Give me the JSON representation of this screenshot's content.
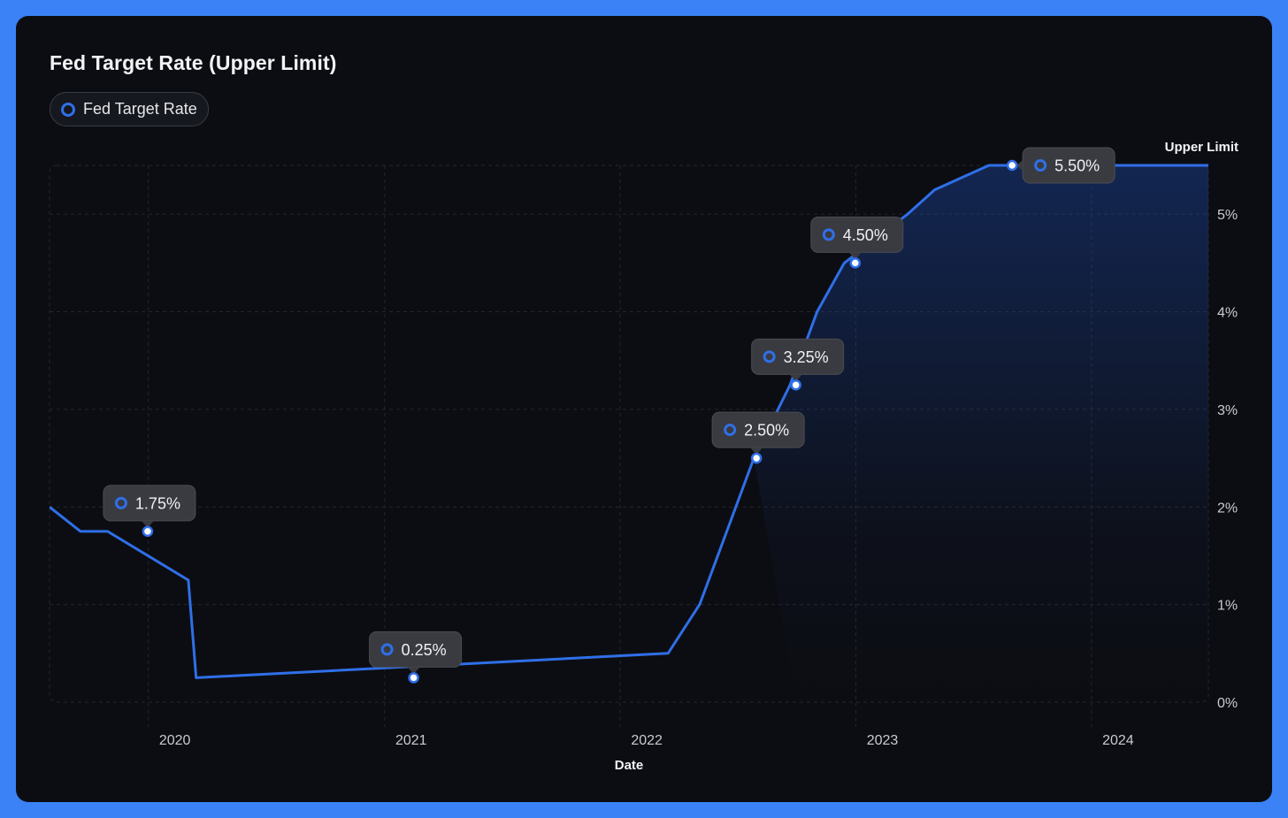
{
  "chart_data": {
    "type": "area",
    "title": "Fed Target Rate (Upper Limit)",
    "legend": {
      "label": "Fed Target Rate",
      "placement": "top-left"
    },
    "xlabel": "Date",
    "ylabel": "Upper Limit",
    "x_ticks": [
      "2020",
      "2021",
      "2022",
      "2023",
      "2024"
    ],
    "y_ticks": [
      "0%",
      "1%",
      "2%",
      "3%",
      "4%",
      "5%"
    ],
    "ylim": [
      0,
      5.5
    ],
    "xlim": [
      "2019-08-01",
      "2024-06-30"
    ],
    "grid": true,
    "colors": {
      "line": "#2f6fe8",
      "background": "#0c0d12",
      "frame": "#3b82f6"
    },
    "series": [
      {
        "name": "Fed Target Rate",
        "points": [
          [
            "2019-08-01",
            2.0
          ],
          [
            "2019-09-18",
            1.75
          ],
          [
            "2019-10-30",
            1.75
          ],
          [
            "2020-03-03",
            1.25
          ],
          [
            "2020-03-15",
            0.25
          ],
          [
            "2022-03-16",
            0.5
          ],
          [
            "2022-05-04",
            1.0
          ],
          [
            "2022-06-15",
            1.75
          ],
          [
            "2022-07-27",
            2.5
          ],
          [
            "2022-09-21",
            3.25
          ],
          [
            "2022-11-02",
            4.0
          ],
          [
            "2022-12-14",
            4.5
          ],
          [
            "2023-02-01",
            4.75
          ],
          [
            "2023-03-22",
            5.0
          ],
          [
            "2023-05-03",
            5.25
          ],
          [
            "2023-07-26",
            5.5
          ],
          [
            "2024-06-30",
            5.5
          ]
        ]
      }
    ],
    "annotations": [
      {
        "date": "2019-12-31",
        "value": 1.75,
        "label": "1.75%"
      },
      {
        "date": "2021-02-15",
        "value": 0.25,
        "label": "0.25%"
      },
      {
        "date": "2022-07-31",
        "value": 2.5,
        "label": "2.50%"
      },
      {
        "date": "2022-09-30",
        "value": 3.25,
        "label": "3.25%"
      },
      {
        "date": "2022-12-31",
        "value": 4.5,
        "label": "4.50%"
      },
      {
        "date": "2023-08-31",
        "value": 5.5,
        "label": "5.50%"
      }
    ]
  }
}
